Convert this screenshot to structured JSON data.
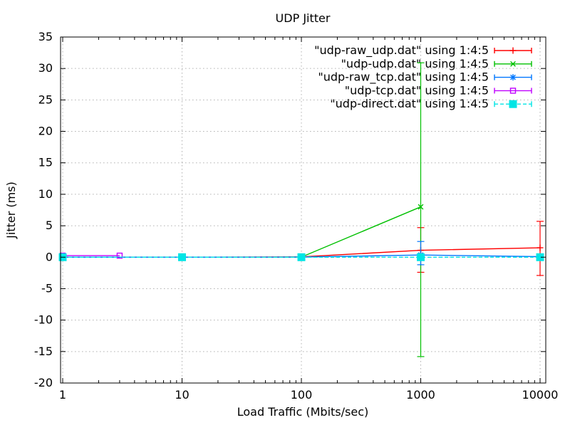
{
  "chart_data": {
    "type": "line",
    "title": "UDP Jitter",
    "xlabel": "Load Traffic (Mbits/sec)",
    "ylabel": "Jitter (ms)",
    "x_scale": "log",
    "xlim": [
      0.95,
      11000
    ],
    "ylim": [
      -20,
      35
    ],
    "x_ticks": [
      1,
      10,
      100,
      1000,
      10000
    ],
    "y_ticks": [
      -20,
      -15,
      -10,
      -5,
      0,
      5,
      10,
      15,
      20,
      25,
      30,
      35
    ],
    "grid": true,
    "legend_position": "top-right",
    "series": [
      {
        "name": "\"udp-raw_udp.dat\" using 1:4:5",
        "color": "#ff0000",
        "marker": "plus",
        "dash": "",
        "points": [
          {
            "x": 1,
            "y": 0
          },
          {
            "x": 10,
            "y": 0
          },
          {
            "x": 100,
            "y": 0.05
          },
          {
            "x": 1000,
            "y": 1.1,
            "lo": -2.4,
            "hi": 4.7
          },
          {
            "x": 10000,
            "y": 1.5,
            "lo": -2.9,
            "hi": 5.7
          }
        ]
      },
      {
        "name": "\"udp-udp.dat\" using 1:4:5",
        "color": "#00c000",
        "marker": "cross",
        "dash": "",
        "points": [
          {
            "x": 1,
            "y": 0
          },
          {
            "x": 10,
            "y": 0
          },
          {
            "x": 100,
            "y": 0.02
          },
          {
            "x": 1000,
            "y": 8,
            "lo": -15.8,
            "hi": 30.9
          }
        ]
      },
      {
        "name": "\"udp-raw_tcp.dat\" using 1:4:5",
        "color": "#0077ff",
        "marker": "asterisk",
        "dash": "",
        "points": [
          {
            "x": 1,
            "y": 0
          },
          {
            "x": 10,
            "y": 0
          },
          {
            "x": 100,
            "y": 0.02
          },
          {
            "x": 1000,
            "y": 0.35,
            "lo": -1.2,
            "hi": 2.5
          },
          {
            "x": 10000,
            "y": 0.1
          }
        ]
      },
      {
        "name": "\"udp-tcp.dat\" using 1:4:5",
        "color": "#c000ff",
        "marker": "square-open",
        "dash": "",
        "points": [
          {
            "x": 1,
            "y": 0.25
          },
          {
            "x": 3,
            "y": 0.25
          }
        ]
      },
      {
        "name": "\"udp-direct.dat\" using 1:4:5",
        "color": "#00e5e5",
        "marker": "square-filled",
        "dash": "5,3",
        "points": [
          {
            "x": 1,
            "y": 0
          },
          {
            "x": 10,
            "y": 0
          },
          {
            "x": 100,
            "y": 0
          },
          {
            "x": 1000,
            "y": 0
          },
          {
            "x": 10000,
            "y": 0
          }
        ]
      }
    ]
  }
}
